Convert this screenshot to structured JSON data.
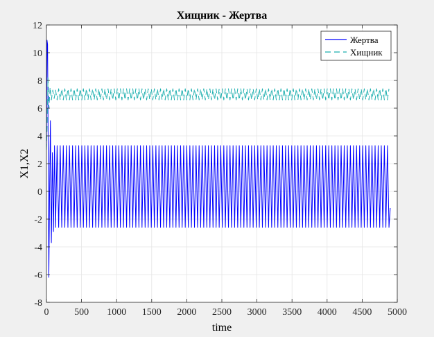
{
  "chart_data": {
    "type": "line",
    "title": "Хищник - Жертва",
    "xlabel": "time",
    "ylabel": "X1,X2",
    "xlim": [
      0,
      5000
    ],
    "ylim": [
      -8,
      12
    ],
    "xticks": [
      0,
      500,
      1000,
      1500,
      2000,
      2500,
      3000,
      3500,
      4000,
      4500,
      5000
    ],
    "yticks": [
      -8,
      -6,
      -4,
      -2,
      0,
      2,
      4,
      6,
      8,
      10,
      12
    ],
    "xtick_labels": [
      "0",
      "500",
      "1000",
      "1500",
      "2000",
      "2500",
      "3000",
      "3500",
      "4000",
      "4500",
      "5000"
    ],
    "ytick_labels": [
      "-8",
      "-6",
      "-4",
      "-2",
      "0",
      "2",
      "4",
      "6",
      "8",
      "10",
      "12"
    ],
    "grid": true,
    "legend_position": "top-right",
    "series": [
      {
        "name": "Жертва",
        "color": "#0000ff",
        "line_style": "solid",
        "x_end": 4900,
        "period": 44,
        "initial_points": [
          [
            0,
            3.2
          ],
          [
            8,
            10.9
          ],
          [
            16,
            10.6
          ],
          [
            26,
            2.0
          ],
          [
            34,
            -6.2
          ],
          [
            44,
            -0.5
          ],
          [
            56,
            5.1
          ],
          [
            70,
            -3.7
          ],
          [
            85,
            2.8
          ],
          [
            100,
            -2.9
          ],
          [
            115,
            3.3
          ],
          [
            130,
            -2.6
          ]
        ],
        "steady_max": 3.3,
        "steady_min": -2.6,
        "final_value": -1.2
      },
      {
        "name": "Хищник",
        "color": "#1aaeae",
        "line_style": "dashed",
        "x_end": 4900,
        "period": 44,
        "initial_points": [
          [
            0,
            3.0
          ],
          [
            10,
            4.9
          ],
          [
            22,
            8.2
          ],
          [
            36,
            6.0
          ],
          [
            52,
            7.5
          ],
          [
            70,
            6.6
          ],
          [
            90,
            7.3
          ],
          [
            110,
            6.7
          ],
          [
            130,
            7.3
          ]
        ],
        "steady_max": 7.4,
        "steady_min": 6.6
      }
    ]
  }
}
